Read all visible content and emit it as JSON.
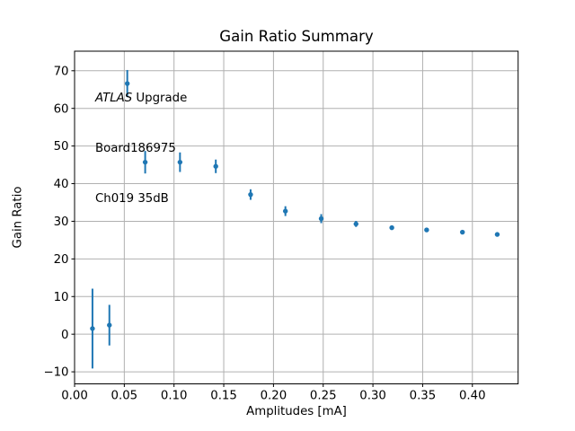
{
  "chart_data": {
    "type": "scatter",
    "title": "Gain Ratio Summary",
    "xlabel": "Amplitudes [mA]",
    "ylabel": "Gain Ratio",
    "annotation": {
      "line1_italic": "ATLAS",
      "line1_rest": " Upgrade",
      "line2": "Board186975",
      "line3": "Ch019 35dB"
    },
    "series": [
      {
        "name": "gain-ratio-points",
        "marker": "circle",
        "color": "#1f77b4",
        "x": [
          0.018,
          0.035,
          0.053,
          0.071,
          0.106,
          0.142,
          0.177,
          0.212,
          0.248,
          0.283,
          0.319,
          0.354,
          0.39,
          0.425
        ],
        "y": [
          1.5,
          2.4,
          66.6,
          45.7,
          45.7,
          44.6,
          37.1,
          32.7,
          30.7,
          29.3,
          28.3,
          27.7,
          27.1,
          26.5
        ],
        "yerr": [
          10.6,
          5.4,
          3.6,
          3.0,
          2.6,
          1.8,
          1.4,
          1.3,
          1.2,
          0.8,
          0.6,
          0.5,
          0.5,
          0.4
        ]
      }
    ],
    "xlim": [
      0,
      0.446
    ],
    "ylim": [
      -13.2,
      75.2
    ],
    "xticks": [
      0,
      0.05,
      0.1,
      0.15,
      0.2,
      0.25,
      0.3,
      0.35,
      0.4
    ],
    "yticks": [
      -10,
      0,
      10,
      20,
      30,
      40,
      50,
      60,
      70
    ],
    "grid": true,
    "legend": "none",
    "colors": {
      "data": "#1f77b4",
      "grid": "#b0b0b0",
      "spine": "#000000",
      "text": "#000000",
      "background": "#ffffff"
    }
  }
}
